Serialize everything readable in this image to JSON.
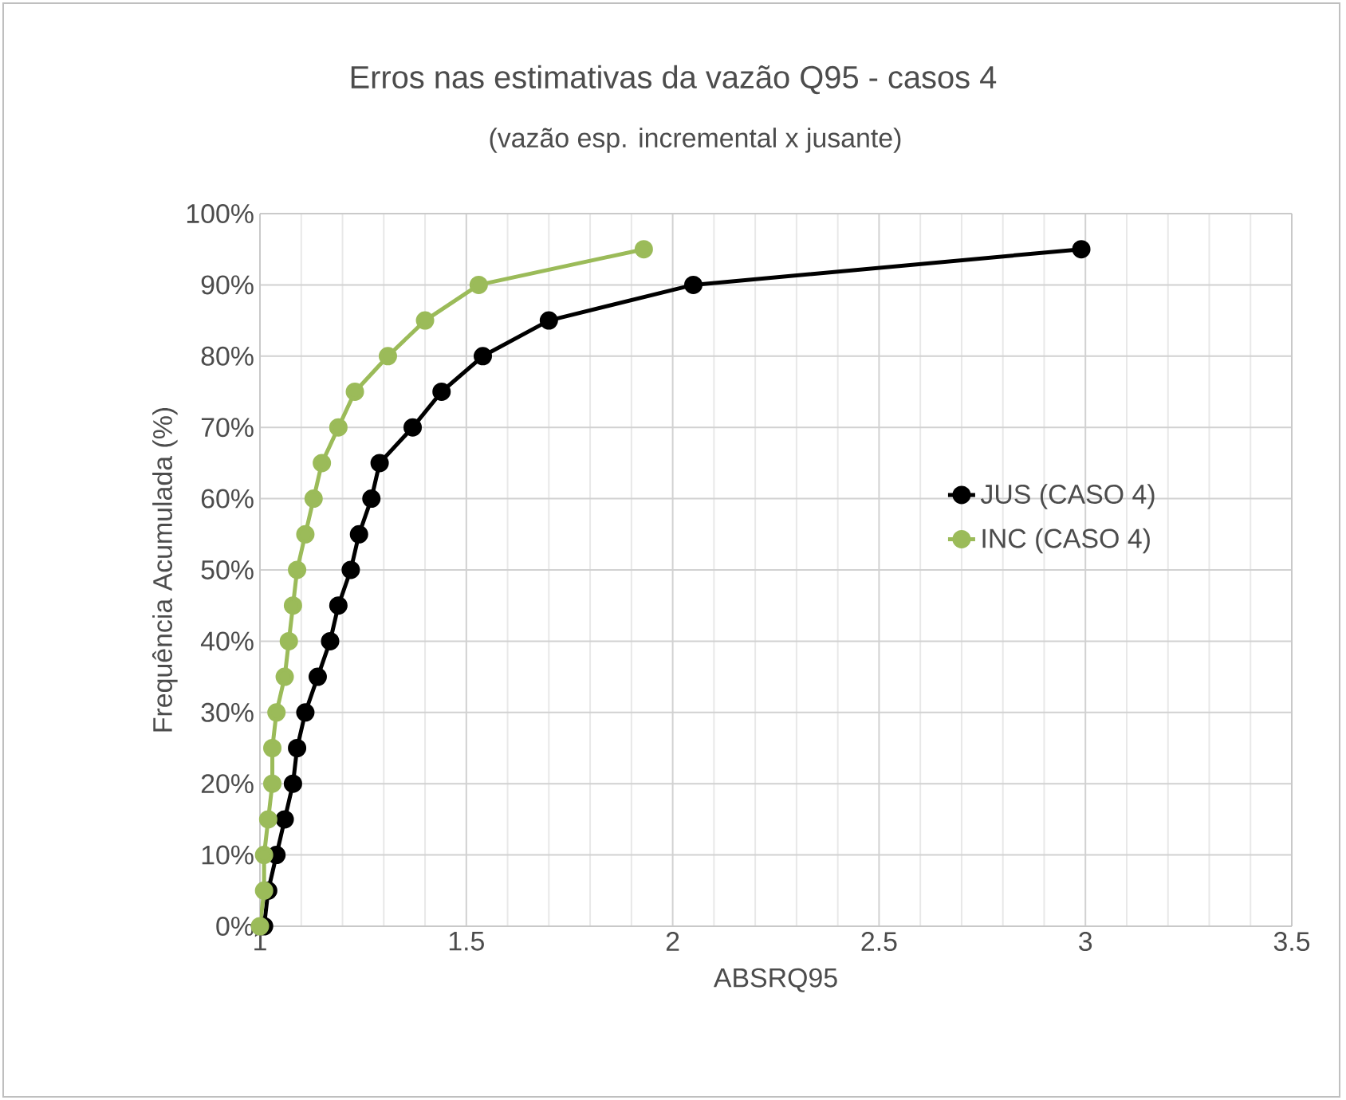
{
  "chart_data": {
    "type": "line",
    "title": "Erros nas estimativas da vazão Q95 - casos 4",
    "subtitle": "(vazão esp. incremental x jusante)",
    "xlabel": "ABSRQ95",
    "ylabel": "Frequência Acumulada (%)",
    "xlim": [
      1,
      3.5
    ],
    "xticks": [
      1,
      1.5,
      2,
      2.5,
      3,
      3.5
    ],
    "ylim": [
      0,
      100
    ],
    "yticks": [
      {
        "value": 0,
        "label": "0%"
      },
      {
        "value": 10,
        "label": "10%"
      },
      {
        "value": 20,
        "label": "20%"
      },
      {
        "value": 30,
        "label": "30%"
      },
      {
        "value": 40,
        "label": "40%"
      },
      {
        "value": 50,
        "label": "50%"
      },
      {
        "value": 60,
        "label": "60%"
      },
      {
        "value": 70,
        "label": "70%"
      },
      {
        "value": 80,
        "label": "80%"
      },
      {
        "value": 90,
        "label": "90%"
      },
      {
        "value": 100,
        "label": "100%"
      }
    ],
    "grid": true,
    "legend": "right",
    "marker": "circle",
    "line_style": "solid",
    "series": [
      {
        "name": "JUS (CASO 4)",
        "color": "#000000",
        "x": [
          1.01,
          1.02,
          1.04,
          1.06,
          1.08,
          1.09,
          1.11,
          1.14,
          1.17,
          1.19,
          1.22,
          1.24,
          1.27,
          1.29,
          1.37,
          1.44,
          1.54,
          1.7,
          2.05,
          2.99
        ],
        "values": [
          0,
          5,
          10,
          15,
          20,
          25,
          30,
          35,
          40,
          45,
          50,
          55,
          60,
          65,
          70,
          75,
          80,
          85,
          90,
          95
        ]
      },
      {
        "name": "INC (CASO 4)",
        "color": "#9bbb59",
        "x": [
          1.0,
          1.01,
          1.01,
          1.02,
          1.03,
          1.03,
          1.04,
          1.06,
          1.07,
          1.08,
          1.09,
          1.11,
          1.13,
          1.15,
          1.19,
          1.23,
          1.31,
          1.4,
          1.53,
          1.93
        ],
        "values": [
          0,
          5,
          10,
          15,
          20,
          25,
          30,
          35,
          40,
          45,
          50,
          55,
          60,
          65,
          70,
          75,
          80,
          85,
          90,
          95
        ]
      }
    ]
  }
}
